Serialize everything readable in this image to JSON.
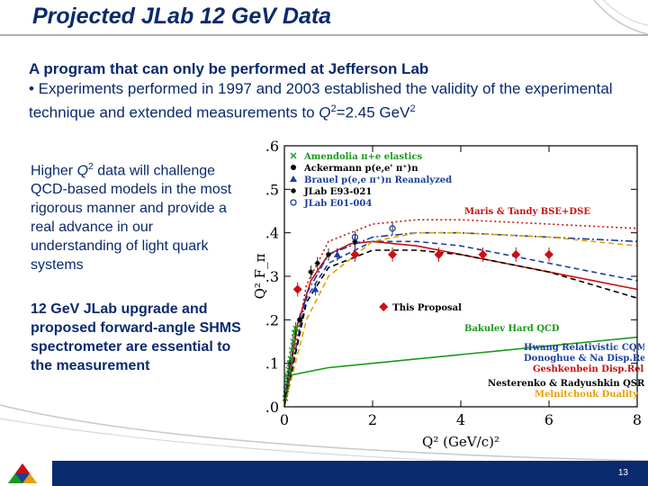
{
  "slide": {
    "title": "Projected JLab 12 GeV Data",
    "intro_lead": "A program that can only be performed at Jefferson Lab",
    "intro_bullet_a": "• Experiments performed in 1997 and 2003 established the validity of the experimental technique and extended measurements to ",
    "intro_q": "Q",
    "intro_exp": "2",
    "intro_bullet_b": "=2.45 GeV",
    "intro_exp2": "2",
    "side1_a": "Higher ",
    "side1_q": "Q",
    "side1_exp": "2",
    "side1_b": " data will challenge QCD-based models in the most rigorous manner and provide a real advance in our understanding of light quark systems",
    "side2": "12 GeV JLab upgrade and proposed forward-angle SHMS spectrometer are essential to the measurement",
    "page_number": "13"
  },
  "chart_data": {
    "type": "scatter",
    "xlabel": "Q² (GeV/c)²",
    "ylabel": "Q² F_π",
    "xlim": [
      0,
      8
    ],
    "ylim": [
      0,
      0.6
    ],
    "x_ticks": [
      "0",
      "2",
      "4",
      "6",
      "8"
    ],
    "y_ticks": [
      ".0",
      ".1",
      ".2",
      ".3",
      ".4",
      ".5",
      ".6"
    ],
    "legend_placement": "top-left",
    "data_legend": [
      {
        "label": "Amendolia π+e elastics",
        "color": "#1a9a1a",
        "marker": "cross"
      },
      {
        "label": "Ackermann p(e,e' π⁺)n",
        "color": "#000000",
        "marker": "dot"
      },
      {
        "label": "Brauel p(e,e π⁺)n Reanalyzed",
        "color": "#1a3fa0",
        "marker": "triangle"
      },
      {
        "label": "JLab E93-021",
        "color": "#000000",
        "marker": "star"
      },
      {
        "label": "JLab E01-004",
        "color": "#1a3fa0",
        "marker": "circle"
      }
    ],
    "proposal_label": "This Proposal",
    "proposal_color": "#cc1010",
    "series": [
      {
        "name": "This Proposal",
        "x": [
          0.3,
          1.6,
          2.45,
          3.5,
          4.5,
          5.25,
          6.0
        ],
        "y": [
          0.27,
          0.35,
          0.35,
          0.35,
          0.35,
          0.35,
          0.35
        ]
      },
      {
        "name": "Amendolia π+e elastics",
        "x": [
          0.02,
          0.04,
          0.06,
          0.08,
          0.1,
          0.12,
          0.14,
          0.17,
          0.2,
          0.23,
          0.26
        ],
        "y": [
          0.02,
          0.04,
          0.055,
          0.07,
          0.085,
          0.1,
          0.11,
          0.13,
          0.15,
          0.17,
          0.18
        ]
      },
      {
        "name": "Ackermann p(e,e' π⁺)n",
        "x": [
          0.35
        ],
        "y": [
          0.2
        ]
      },
      {
        "name": "Brauel p(e,e π⁺)n Reanalyzed",
        "x": [
          0.7,
          1.2
        ],
        "y": [
          0.27,
          0.35
        ]
      },
      {
        "name": "JLab E93-021",
        "x": [
          0.6,
          0.75,
          1.0,
          1.6
        ],
        "y": [
          0.31,
          0.33,
          0.35,
          0.38
        ]
      },
      {
        "name": "JLab E01-004",
        "x": [
          1.6,
          2.45
        ],
        "y": [
          0.39,
          0.41
        ]
      }
    ],
    "models": [
      {
        "label": "Maris & Tandy BSE+DSE",
        "color": "#cc1010",
        "style": "solid",
        "x": [
          0,
          0.3,
          0.6,
          1,
          1.5,
          2,
          2.5,
          3,
          4,
          5,
          6,
          7,
          8
        ],
        "y": [
          0,
          0.19,
          0.29,
          0.35,
          0.375,
          0.38,
          0.375,
          0.37,
          0.35,
          0.33,
          0.31,
          0.29,
          0.27
        ]
      },
      {
        "label": "Bakulev Hard QCD",
        "color": "#1a9a1a",
        "style": "solid",
        "x": [
          0,
          1,
          2,
          3,
          4,
          5,
          6,
          7,
          8
        ],
        "y": [
          0.07,
          0.09,
          0.1,
          0.11,
          0.12,
          0.13,
          0.14,
          0.15,
          0.16
        ]
      },
      {
        "label": "Hwang Relativistic CQM",
        "color": "#1a3fa0",
        "style": "dashed",
        "x": [
          0,
          0.5,
          1,
          2,
          3,
          4,
          5,
          6,
          7,
          8
        ],
        "y": [
          0,
          0.25,
          0.33,
          0.38,
          0.38,
          0.37,
          0.35,
          0.33,
          0.31,
          0.29
        ]
      },
      {
        "label": "Donoghue & Na Disp.Rel.",
        "color": "#1a3fa0",
        "style": "dashdot",
        "x": [
          0,
          0.5,
          1,
          2,
          3,
          4,
          5,
          6,
          7,
          8
        ],
        "y": [
          0,
          0.26,
          0.35,
          0.39,
          0.4,
          0.4,
          0.395,
          0.39,
          0.385,
          0.38
        ]
      },
      {
        "label": "Geshkenbein Disp.Rel.",
        "color": "#cc1010",
        "style": "dotted",
        "x": [
          0,
          0.5,
          1,
          2,
          3,
          4,
          5,
          6,
          7,
          8
        ],
        "y": [
          0,
          0.28,
          0.38,
          0.42,
          0.43,
          0.43,
          0.425,
          0.42,
          0.415,
          0.41
        ]
      },
      {
        "label": "Nesterenko & Radyushkin QSR",
        "color": "#000000",
        "style": "dashed",
        "x": [
          0,
          0.5,
          1,
          2,
          3,
          4,
          5,
          6,
          7,
          8
        ],
        "y": [
          0,
          0.24,
          0.32,
          0.36,
          0.36,
          0.35,
          0.33,
          0.31,
          0.28,
          0.25
        ]
      },
      {
        "label": "Melnitchouk Duality",
        "color": "#e8a000",
        "style": "dashed",
        "x": [
          0,
          0.5,
          1,
          2,
          3,
          4,
          5,
          6,
          7,
          8
        ],
        "y": [
          0,
          0.2,
          0.3,
          0.38,
          0.4,
          0.4,
          0.395,
          0.39,
          0.38,
          0.37
        ]
      }
    ]
  }
}
